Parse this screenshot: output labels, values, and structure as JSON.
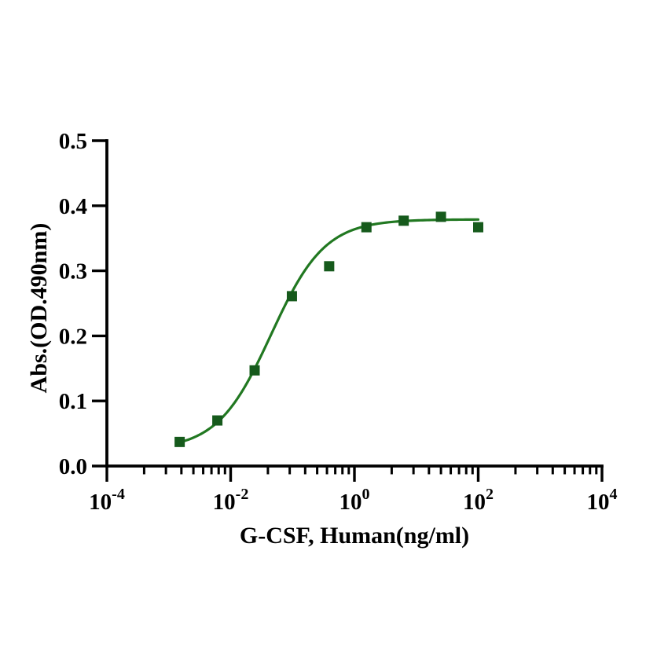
{
  "figure": {
    "background": "#ffffff"
  },
  "chart_data": {
    "type": "scatter",
    "title": "",
    "xlabel": "G-CSF, Human(ng/ml)",
    "ylabel": "Abs.(OD.490nm)",
    "x_scale": "log",
    "xlim": [
      0.0001,
      10000.0
    ],
    "ylim": [
      0.0,
      0.5
    ],
    "grid": false,
    "legend_position": "none",
    "y_tick_values": [
      0.0,
      0.1,
      0.2,
      0.3,
      0.4,
      0.5
    ],
    "y_tick_labels": [
      "0.0",
      "0.1",
      "0.2",
      "0.3",
      "0.4",
      "0.5"
    ],
    "x_major_ticks": [
      {
        "value": 0.0001,
        "base": "10",
        "exponent": "-4"
      },
      {
        "value": 0.01,
        "base": "10",
        "exponent": "-2"
      },
      {
        "value": 1,
        "base": "10",
        "exponent": "0"
      },
      {
        "value": 100,
        "base": "10",
        "exponent": "2"
      },
      {
        "value": 10000,
        "base": "10",
        "exponent": "4"
      }
    ],
    "x_minor_tick_multipliers": [
      2,
      3,
      4,
      5,
      6,
      7,
      8,
      9
    ],
    "series": [
      {
        "name": "G-CSF, Human",
        "marker": "square",
        "marker_size": 13,
        "marker_color": "#165a1c",
        "line_color": "#217821",
        "points": [
          {
            "x": 0.0015,
            "y": 0.037
          },
          {
            "x": 0.0061,
            "y": 0.07
          },
          {
            "x": 0.0244,
            "y": 0.147
          },
          {
            "x": 0.0977,
            "y": 0.261
          },
          {
            "x": 0.3906,
            "y": 0.307
          },
          {
            "x": 1.5625,
            "y": 0.367
          },
          {
            "x": 6.25,
            "y": 0.377
          },
          {
            "x": 25,
            "y": 0.383
          },
          {
            "x": 100,
            "y": 0.367
          }
        ],
        "fit_curve": {
          "model": "four_parameter_logistic",
          "bottom": 0.025,
          "top": 0.379,
          "ec50": 0.045,
          "hill": 1.0,
          "x_start": 0.0015,
          "x_end": 100
        }
      }
    ],
    "axis_color": "#000000",
    "text_color": "#000000"
  }
}
